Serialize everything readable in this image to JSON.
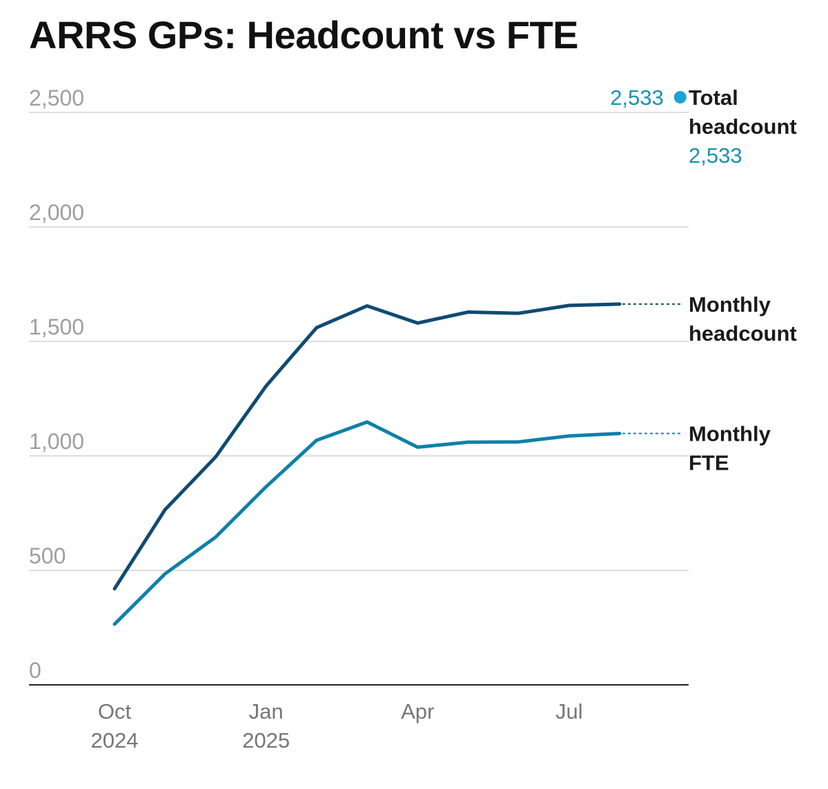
{
  "colors": {
    "headcount": "#0f4b72",
    "fte": "#0d81a8",
    "total": "#1aa3d3",
    "grid": "#dddddd",
    "axis": "#222222"
  },
  "chart_data": {
    "type": "line",
    "title": "ARRS GPs: Headcount vs FTE",
    "xlabel": "",
    "ylabel": "",
    "ylim": [
      0,
      2500
    ],
    "yticks": [
      0,
      500,
      1000,
      1500,
      2000,
      2500
    ],
    "ytick_labels": [
      "0",
      "500",
      "1,000",
      "1,500",
      "2,000",
      "2,500"
    ],
    "x": [
      "2024-10",
      "2024-11",
      "2024-12",
      "2025-01",
      "2025-02",
      "2025-03",
      "2025-04",
      "2025-05",
      "2025-06",
      "2025-07",
      "2025-08"
    ],
    "xticks": [
      {
        "month_index": 0,
        "line1": "Oct",
        "line2": "2024"
      },
      {
        "month_index": 3,
        "line1": "Jan",
        "line2": "2025"
      },
      {
        "month_index": 6,
        "line1": "Apr",
        "line2": ""
      },
      {
        "month_index": 9,
        "line1": "Jul",
        "line2": ""
      }
    ],
    "series": [
      {
        "name": "Monthly headcount",
        "label_lines": [
          "Monthly",
          "headcount"
        ],
        "values": [
          420,
          765,
          995,
          1305,
          1560,
          1655,
          1580,
          1628,
          1623,
          1657,
          1663
        ]
      },
      {
        "name": "Monthly FTE",
        "label_lines": [
          "Monthly",
          "FTE"
        ],
        "values": [
          265,
          485,
          645,
          865,
          1068,
          1148,
          1038,
          1060,
          1061,
          1087,
          1098
        ]
      }
    ],
    "total_point": {
      "name": "Total headcount",
      "label_lines": [
        "Total",
        "headcount"
      ],
      "month_index": 11.2,
      "value": 2533,
      "value_text": "2,533",
      "value_text_secondary": "2,533"
    }
  }
}
